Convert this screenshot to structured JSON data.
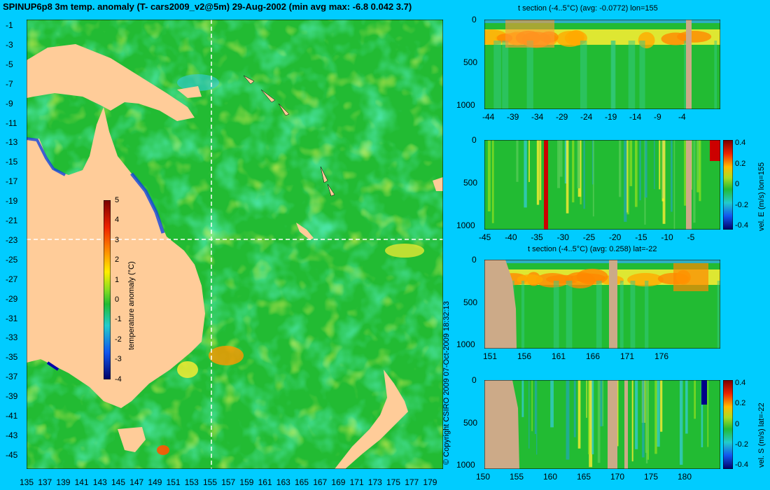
{
  "title": "SPINUP6p8 3m temp. anomaly (T- cars2009_v2@5m) 29-Aug-2002 (min avg max: -6.8 0.042 3.7)",
  "copyright": "© Copyright CSIRO 2009   07-Oct-2009 18:32:13",
  "map": {
    "lat_ticks": [
      "-1",
      "-3",
      "-5",
      "-7",
      "-9",
      "-11",
      "-13",
      "-15",
      "-17",
      "-19",
      "-21",
      "-23",
      "-25",
      "-27",
      "-29",
      "-31",
      "-33",
      "-35",
      "-37",
      "-39",
      "-41",
      "-43",
      "-45"
    ],
    "lon_ticks": [
      "135",
      "137",
      "139",
      "141",
      "143",
      "145",
      "147",
      "149",
      "151",
      "153",
      "155",
      "157",
      "159",
      "161",
      "163",
      "165",
      "167",
      "169",
      "171",
      "173",
      "175",
      "177",
      "179"
    ],
    "colorbar": {
      "label": "temperature anomaly (°C)",
      "ticks": [
        "5",
        "4",
        "3",
        "2",
        "1",
        "0",
        "-1",
        "-2",
        "-3",
        "-4"
      ]
    },
    "colors": {
      "land": "#ffcc99",
      "ocean": "#22bb33"
    }
  },
  "sections": [
    {
      "title": "t section (-4..5°C) (avg: -0.0772) lon=155",
      "x_ticks": [
        "-44",
        "-39",
        "-34",
        "-29",
        "-24",
        "-19",
        "-14",
        "-9",
        "-4"
      ],
      "y_ticks": [
        "0",
        "500",
        "1000"
      ],
      "colorbar": null
    },
    {
      "title": "",
      "x_ticks": [
        "-45",
        "-40",
        "-35",
        "-30",
        "-25",
        "-20",
        "-15",
        "-10",
        "-5"
      ],
      "y_ticks": [
        "0",
        "500",
        "1000"
      ],
      "colorbar": {
        "label": "vel. E (m/s) lon=155",
        "ticks": [
          "0.4",
          "0.2",
          "0",
          "-0.2",
          "-0.4"
        ]
      }
    },
    {
      "title": "t section (-4..5°C) (avg: 0.258) lat=-22",
      "x_ticks": [
        "151",
        "156",
        "161",
        "166",
        "171",
        "176"
      ],
      "y_ticks": [
        "0",
        "500",
        "1000"
      ],
      "colorbar": null
    },
    {
      "title": "",
      "x_ticks": [
        "150",
        "155",
        "160",
        "165",
        "170",
        "175",
        "180"
      ],
      "y_ticks": [
        "0",
        "500",
        "1000"
      ],
      "colorbar": {
        "label": "vel. S (m/s) lat=-22",
        "ticks": [
          "0.4",
          "0.2",
          "0",
          "-0.2",
          "-0.4"
        ]
      }
    }
  ]
}
